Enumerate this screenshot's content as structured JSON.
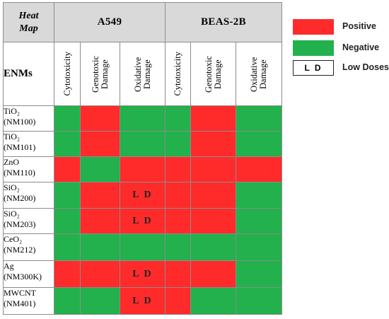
{
  "corner": {
    "line1": "Heat",
    "line2": "Map"
  },
  "enm_header": "ENMs",
  "cell_lines": [
    "A549",
    "BEAS-2B"
  ],
  "columns": [
    "Cytotoxicity",
    "Genotoxic Damage",
    "Oxidative Damage",
    "Cytotoxicity",
    "Genotoxic Damage",
    "Oxidative Damage"
  ],
  "rows": [
    {
      "name": "TiO₂",
      "code": "(NM100)",
      "values": [
        "Negative",
        "Positive",
        "Negative",
        "Negative",
        "Positive",
        "Negative"
      ]
    },
    {
      "name": "TiO₂",
      "code": "(NM101)",
      "values": [
        "Negative",
        "Positive",
        "Negative",
        "Negative",
        "Positive",
        "Negative"
      ]
    },
    {
      "name": "ZnO",
      "code": "(NM110)",
      "values": [
        "Positive",
        "Negative",
        "Positive",
        "Positive",
        "Positive",
        "Positive"
      ]
    },
    {
      "name": "SiO₂",
      "code": "(NM200)",
      "values": [
        "Negative",
        "Positive",
        "Positive",
        "Positive",
        "Positive",
        "Negative"
      ]
    },
    {
      "name": "SiO₂",
      "code": "(NM203)",
      "values": [
        "Negative",
        "Positive",
        "Positive",
        "Positive",
        "Positive",
        "Negative"
      ]
    },
    {
      "name": "CeO₂",
      "code": "(NM212)",
      "values": [
        "Negative",
        "Negative",
        "Negative",
        "Negative",
        "Negative",
        "Negative"
      ]
    },
    {
      "name": "Ag",
      "code": "(NM300K)",
      "values": [
        "Positive",
        "Positive",
        "Positive",
        "Positive",
        "Positive",
        "Negative"
      ]
    },
    {
      "name": "MWCNT",
      "code": "(NM401)",
      "values": [
        "Negative",
        "Negative",
        "Positive",
        "Positive",
        "Negative",
        "Negative"
      ]
    }
  ],
  "low_dose_cells": [
    [
      3,
      2
    ],
    [
      4,
      2
    ],
    [
      6,
      2
    ],
    [
      7,
      2
    ]
  ],
  "low_dose_text": "L D",
  "legend": {
    "positive": {
      "label": "Positive",
      "color": "#ff2b2b"
    },
    "negative": {
      "label": "Negative",
      "color": "#22b14c"
    },
    "low_doses": {
      "box_text": "L D",
      "label": "Low Doses"
    }
  }
}
